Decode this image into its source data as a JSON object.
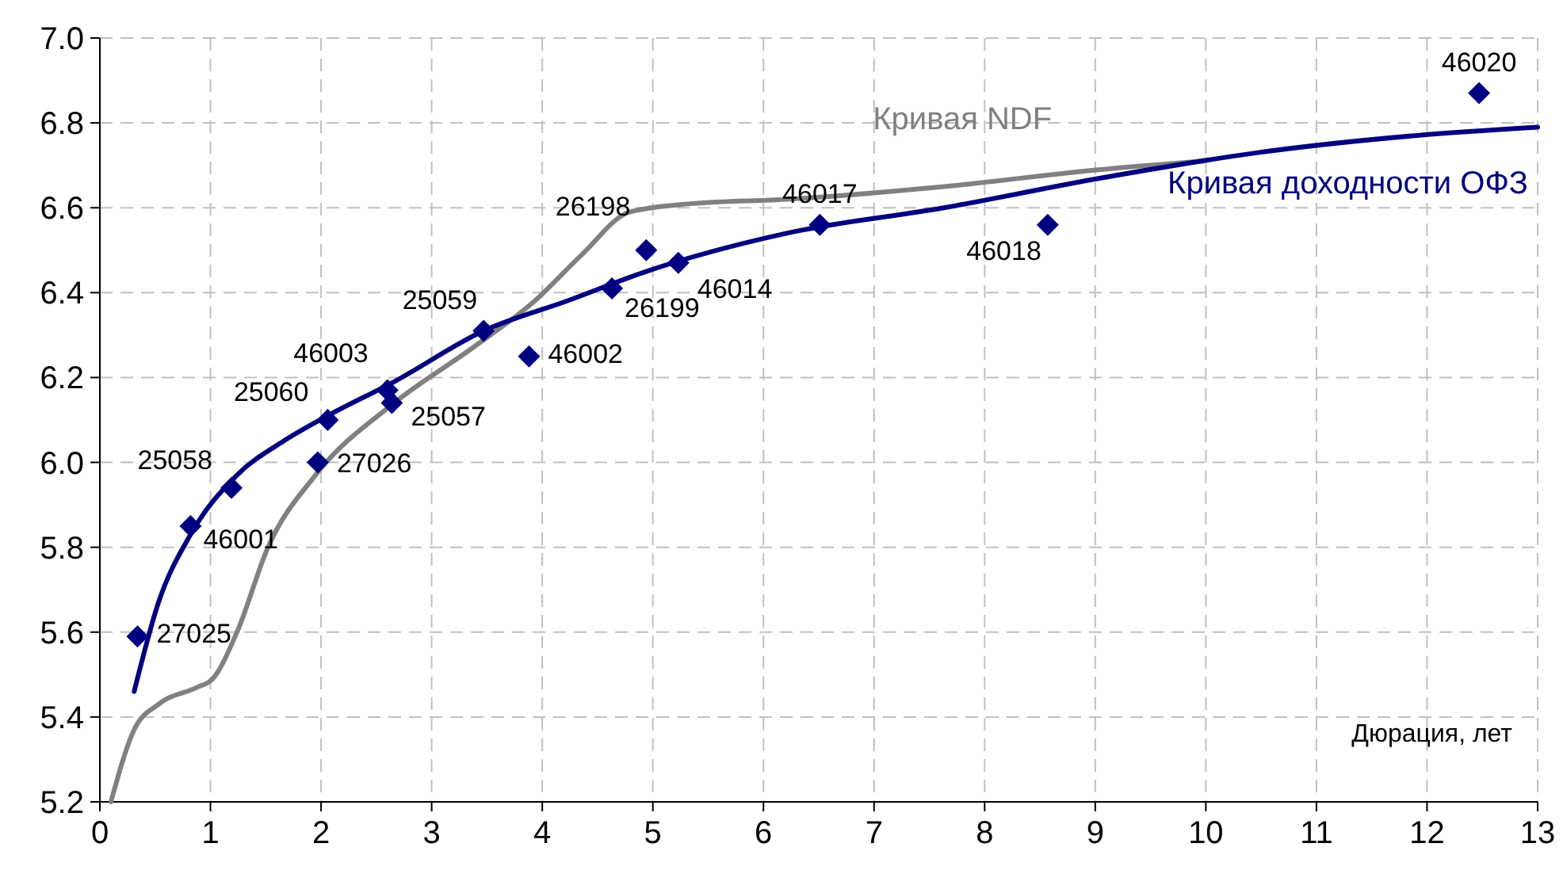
{
  "chart_data": {
    "type": "line",
    "xlabel": "Дюрация, лет",
    "xlim": [
      0,
      13
    ],
    "xticks": [
      0,
      1,
      2,
      3,
      4,
      5,
      6,
      7,
      8,
      9,
      10,
      11,
      12,
      13
    ],
    "ylim": [
      5.2,
      7.0
    ],
    "yticks": [
      {
        "value": 5.2,
        "label": "5.2"
      },
      {
        "value": 5.4,
        "label": "5.4"
      },
      {
        "value": 5.6,
        "label": "5.6"
      },
      {
        "value": 5.8,
        "label": "5.8"
      },
      {
        "value": 6.0,
        "label": "6.0"
      },
      {
        "value": 6.2,
        "label": "6.2"
      },
      {
        "value": 6.4,
        "label": "6.4"
      },
      {
        "value": 6.6,
        "label": "6.6"
      },
      {
        "value": 6.8,
        "label": "6.8"
      },
      {
        "value": 7.0,
        "label": "7.0"
      }
    ],
    "grid": true,
    "line_style": "solid",
    "marker": "none",
    "series": [
      {
        "name": "Кривая NDF",
        "color": "#808080",
        "x": [
          0.1,
          0.31,
          0.53,
          0.88,
          1.02,
          1.24,
          1.52,
          1.95,
          2.66,
          3.37,
          3.93,
          4.36,
          4.79,
          5.36,
          6.21,
          7.63,
          9.05,
          9.97
        ],
        "values": [
          5.2,
          5.37,
          5.43,
          5.47,
          5.49,
          5.6,
          5.8,
          5.97,
          6.14,
          6.27,
          6.38,
          6.49,
          6.59,
          6.61,
          6.62,
          6.65,
          6.69,
          6.71
        ]
      },
      {
        "name": "Кривая доходности ОФЗ",
        "color": "#000080",
        "x": [
          0.31,
          0.53,
          0.82,
          1.24,
          1.66,
          2.06,
          2.66,
          3.47,
          4.22,
          4.94,
          6.21,
          7.63,
          9.05,
          10.47,
          11.89,
          13
        ],
        "values": [
          5.46,
          5.67,
          5.83,
          5.97,
          6.05,
          6.11,
          6.19,
          6.31,
          6.38,
          6.45,
          6.54,
          6.6,
          6.67,
          6.73,
          6.77,
          6.79
        ]
      },
      {
        "color": "#000080",
        "type": "scatter",
        "marker": "diamond",
        "x": [
          0.34,
          0.82,
          1.19,
          1.97,
          2.06,
          2.6,
          2.64,
          3.47,
          3.88,
          4.63,
          4.94,
          5.23,
          6.51,
          8.57,
          12.47
        ],
        "values": [
          5.59,
          5.85,
          5.94,
          6.0,
          6.1,
          6.17,
          6.14,
          6.31,
          6.25,
          6.41,
          6.5,
          6.47,
          6.56,
          6.56,
          6.87
        ]
      }
    ],
    "annotations": [
      {
        "text": "27025",
        "x": 0.34,
        "y": 5.59
      },
      {
        "text": "46001",
        "x": 0.82,
        "y": 5.85
      },
      {
        "text": "25058",
        "x": 1.19,
        "y": 5.94
      },
      {
        "text": "27026",
        "x": 1.97,
        "y": 6.0
      },
      {
        "text": "25060",
        "x": 2.06,
        "y": 6.1
      },
      {
        "text": "46003",
        "x": 2.6,
        "y": 6.17
      },
      {
        "text": "25057",
        "x": 2.64,
        "y": 6.14
      },
      {
        "text": "25059",
        "x": 3.47,
        "y": 6.31
      },
      {
        "text": "46002",
        "x": 3.88,
        "y": 6.25
      },
      {
        "text": "26199",
        "x": 4.63,
        "y": 6.41
      },
      {
        "text": "26198",
        "x": 4.94,
        "y": 6.5
      },
      {
        "text": "46014",
        "x": 5.23,
        "y": 6.47
      },
      {
        "text": "46017",
        "x": 6.51,
        "y": 6.56
      },
      {
        "text": "46018",
        "x": 8.57,
        "y": 6.56
      },
      {
        "text": "46020",
        "x": 12.47,
        "y": 6.87
      }
    ]
  }
}
